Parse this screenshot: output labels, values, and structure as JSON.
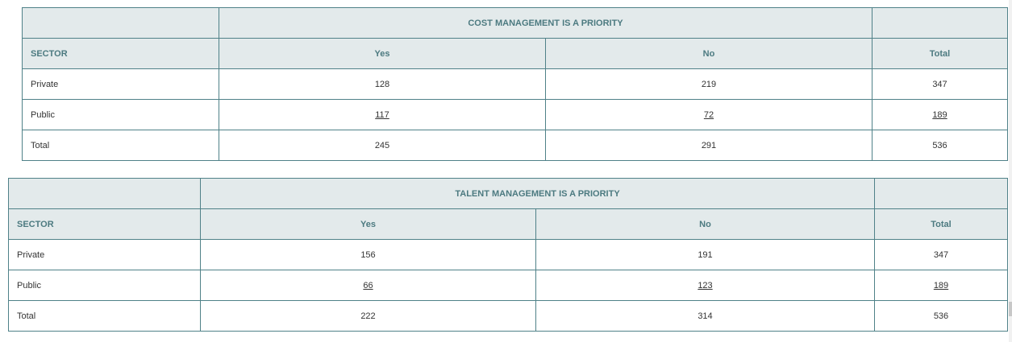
{
  "tables": [
    {
      "title": "COST MANAGEMENT IS A PRIORITY",
      "headers": [
        "SECTOR",
        "Yes",
        "No",
        "Total"
      ],
      "rows": [
        [
          "Private",
          128,
          219,
          347
        ],
        [
          "Public",
          117,
          72,
          189
        ],
        [
          "Total",
          245,
          291,
          536
        ]
      ]
    },
    {
      "title": "TALENT MANAGEMENT IS A PRIORITY",
      "headers": [
        "SECTOR",
        "Yes",
        "No",
        "Total"
      ],
      "rows": [
        [
          "Private",
          156,
          191,
          347
        ],
        [
          "Public",
          66,
          123,
          189
        ],
        [
          "Total",
          222,
          314,
          536
        ]
      ]
    }
  ]
}
